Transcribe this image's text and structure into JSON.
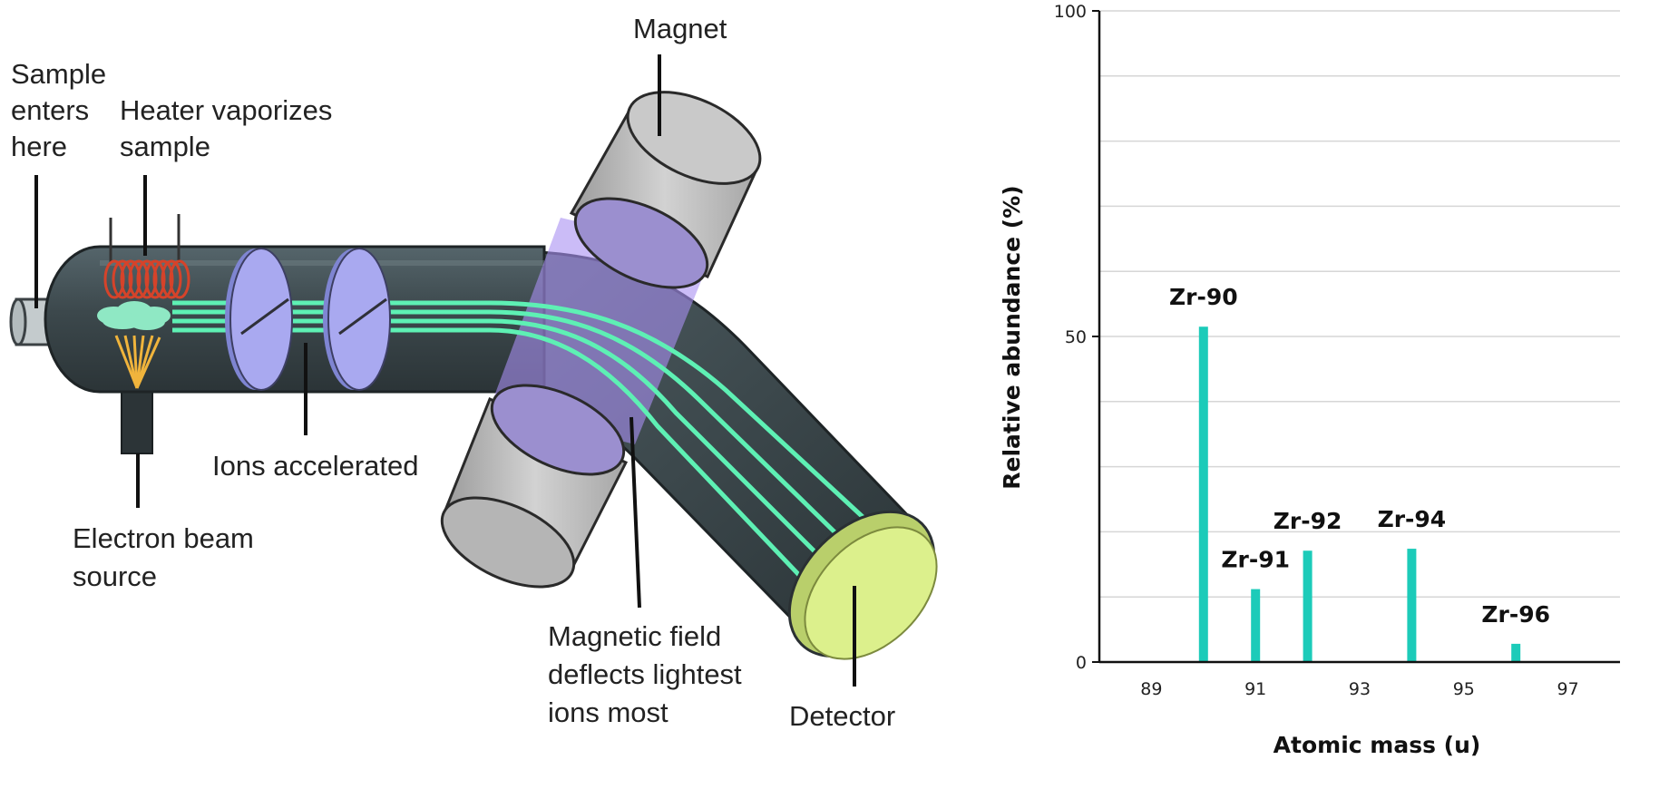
{
  "diagram": {
    "labels": {
      "sample": [
        "Sample",
        "enters",
        "here"
      ],
      "heater": [
        "Heater vaporizes",
        "sample"
      ],
      "magnet": "Magnet",
      "ions": "Ions accelerated",
      "electron": [
        "Electron beam",
        "source"
      ],
      "field": [
        "Magnetic field",
        "deflects lightest",
        "ions most"
      ],
      "detector": "Detector"
    },
    "colors": {
      "tube": "#3e4a4e",
      "beam": "#5ef0b4",
      "coil": "#d5432a",
      "plate": "#a9a9f0",
      "field": "#a98ff2",
      "detector": "#dcf08c",
      "magnet": "#bcbcbc"
    }
  },
  "chart_data": {
    "type": "bar",
    "categories": [
      "Zr-90",
      "Zr-91",
      "Zr-92",
      "Zr-94",
      "Zr-96"
    ],
    "x": [
      90,
      91,
      92,
      94,
      96
    ],
    "values": [
      51.5,
      11.2,
      17.1,
      17.4,
      2.8
    ],
    "xlabel": "Atomic mass (u)",
    "ylabel": "Relative abundance (%)",
    "xlim": [
      88,
      98
    ],
    "ylim": [
      0,
      100
    ],
    "xticks": [
      "89",
      "91",
      "93",
      "95",
      "97"
    ],
    "yticks": [
      "0",
      "50",
      "100"
    ],
    "grid": "horizontal",
    "bar_color": "#1ccbb9"
  }
}
